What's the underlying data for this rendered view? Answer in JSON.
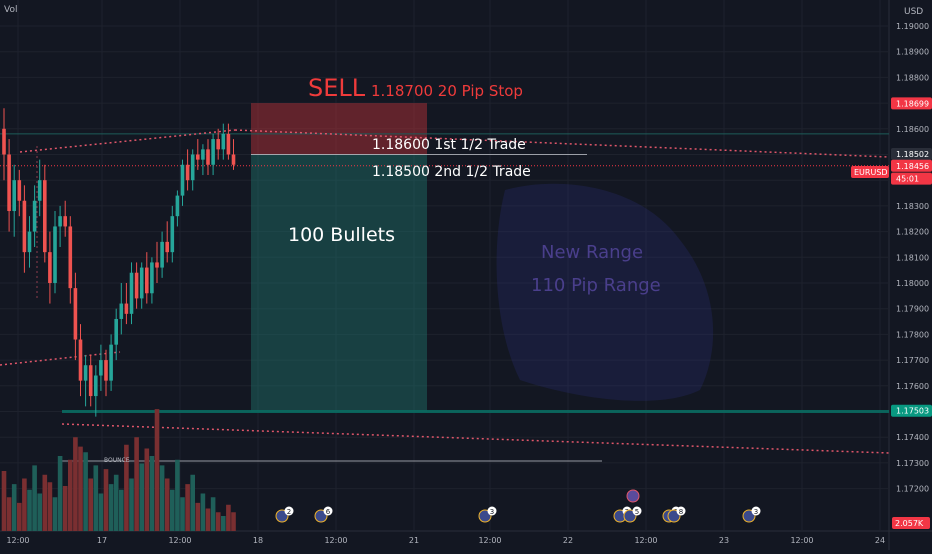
{
  "vol_label": "Vol",
  "currency": "USD",
  "chart_data": {
    "type": "candlestick",
    "symbol": "EURUSD",
    "ylim": [
      1.1707,
      1.1907
    ],
    "y_ticks": [
      "1.19000",
      "1.18900",
      "1.18800",
      "1.18700",
      "1.18600",
      "1.18500",
      "1.18400",
      "1.18300",
      "1.18200",
      "1.18100",
      "1.18000",
      "1.17900",
      "1.17800",
      "1.17700",
      "1.17600",
      "1.17500",
      "1.17400",
      "1.17300",
      "1.17200"
    ],
    "x_ticks": [
      "12:00",
      "17",
      "12:00",
      "18",
      "12:00",
      "21",
      "12:00",
      "22",
      "12:00",
      "23",
      "12:00",
      "24"
    ],
    "candles": [
      [
        1.186,
        1.1868,
        1.184,
        1.185
      ],
      [
        1.185,
        1.1856,
        1.182,
        1.1828
      ],
      [
        1.1828,
        1.1846,
        1.1818,
        1.184
      ],
      [
        1.184,
        1.1844,
        1.1826,
        1.1832
      ],
      [
        1.1832,
        1.1838,
        1.1804,
        1.1812
      ],
      [
        1.1812,
        1.1826,
        1.1806,
        1.182
      ],
      [
        1.182,
        1.1838,
        1.1814,
        1.1832
      ],
      [
        1.1832,
        1.1848,
        1.1826,
        1.184
      ],
      [
        1.184,
        1.1846,
        1.1808,
        1.1812
      ],
      [
        1.1812,
        1.182,
        1.1792,
        1.18
      ],
      [
        1.18,
        1.1828,
        1.1796,
        1.1822
      ],
      [
        1.1822,
        1.183,
        1.1814,
        1.1826
      ],
      [
        1.1826,
        1.1832,
        1.1818,
        1.1822
      ],
      [
        1.1822,
        1.1826,
        1.1792,
        1.1798
      ],
      [
        1.1798,
        1.1804,
        1.177,
        1.1778
      ],
      [
        1.1778,
        1.1784,
        1.1756,
        1.1762
      ],
      [
        1.1762,
        1.1772,
        1.1752,
        1.1768
      ],
      [
        1.1768,
        1.1772,
        1.1752,
        1.1756
      ],
      [
        1.1756,
        1.1768,
        1.1748,
        1.1764
      ],
      [
        1.1764,
        1.1776,
        1.1758,
        1.177
      ],
      [
        1.177,
        1.1774,
        1.1756,
        1.1762
      ],
      [
        1.1762,
        1.178,
        1.1758,
        1.1776
      ],
      [
        1.1776,
        1.179,
        1.177,
        1.1786
      ],
      [
        1.1786,
        1.18,
        1.178,
        1.1792
      ],
      [
        1.1792,
        1.18,
        1.1784,
        1.1788
      ],
      [
        1.1788,
        1.1808,
        1.1784,
        1.1804
      ],
      [
        1.1804,
        1.1808,
        1.179,
        1.1794
      ],
      [
        1.1794,
        1.1808,
        1.179,
        1.1806
      ],
      [
        1.1806,
        1.1812,
        1.1792,
        1.1796
      ],
      [
        1.1796,
        1.181,
        1.1792,
        1.1808
      ],
      [
        1.1808,
        1.1816,
        1.18,
        1.1806
      ],
      [
        1.1806,
        1.182,
        1.1802,
        1.1816
      ],
      [
        1.1816,
        1.1824,
        1.1808,
        1.1812
      ],
      [
        1.1812,
        1.183,
        1.1808,
        1.1826
      ],
      [
        1.1826,
        1.1836,
        1.1822,
        1.1834
      ],
      [
        1.1834,
        1.1848,
        1.183,
        1.1846
      ],
      [
        1.1846,
        1.1852,
        1.1836,
        1.184
      ],
      [
        1.184,
        1.1852,
        1.1836,
        1.185
      ],
      [
        1.185,
        1.1856,
        1.1844,
        1.1848
      ],
      [
        1.1848,
        1.1854,
        1.1842,
        1.1852
      ],
      [
        1.1852,
        1.1856,
        1.1842,
        1.1846
      ],
      [
        1.1846,
        1.1858,
        1.1842,
        1.1856
      ],
      [
        1.1856,
        1.186,
        1.1848,
        1.1852
      ],
      [
        1.1852,
        1.1862,
        1.1848,
        1.1858
      ],
      [
        1.1858,
        1.1862,
        1.1848,
        1.185
      ],
      [
        1.185,
        1.1856,
        1.1844,
        1.1846
      ]
    ],
    "volume": [
      32,
      18,
      25,
      15,
      28,
      22,
      35,
      20,
      30,
      26,
      18,
      40,
      24,
      38,
      50,
      45,
      42,
      28,
      35,
      20,
      33,
      25,
      30,
      22,
      46,
      28,
      50,
      36,
      44,
      40,
      65,
      35,
      28,
      22,
      38,
      18,
      25,
      30,
      15,
      20,
      12,
      18,
      10,
      8,
      14,
      10
    ],
    "bounce_label": "BOUNCE",
    "trade": {
      "sell_label": "SELL",
      "sell_note": "1.18700 20 Pip Stop",
      "entry_1": "1.18600 1st 1/2 Trade",
      "entry_2": "1.18500 2nd 1/2 Trade",
      "stop": 1.187,
      "entry": 1.185,
      "target": 1.175,
      "target_label": "100 Bullets"
    },
    "range_note": [
      "New Range",
      "110 Pip Range"
    ],
    "price_tags": [
      {
        "text": "1.18699",
        "price": 1.18699,
        "color": "#f23645"
      },
      {
        "text": "1.18502",
        "price": 1.18502,
        "color": "#2a2e39"
      },
      {
        "text": "1.18456",
        "price": 1.18456,
        "color": "#f23645"
      },
      {
        "text": "45:01",
        "price": 1.18406,
        "color": "#f23645"
      },
      {
        "text": "1.17503",
        "price": 1.17503,
        "color": "#089981"
      }
    ],
    "symbol_tag": "EURUSD",
    "volume_tag": "2.057K",
    "event_badges": [
      "2",
      "6",
      "3",
      "2",
      "5",
      "3",
      "8",
      "3"
    ],
    "colors": {
      "up": "#26a69a",
      "down": "#ef5350",
      "background": "#131722"
    }
  }
}
